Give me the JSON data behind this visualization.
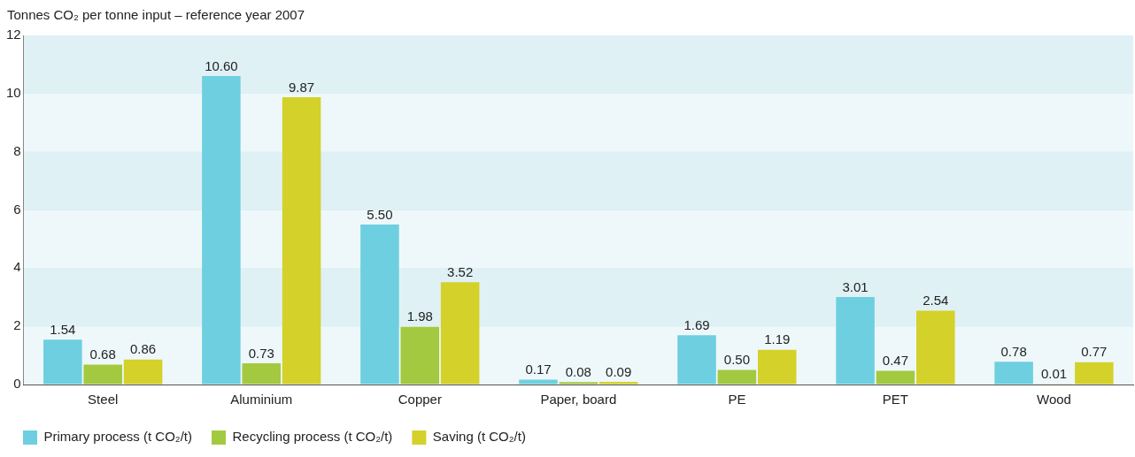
{
  "chart_data": {
    "type": "bar",
    "ylabel": "Tonnes CO₂ per tonne input – reference year 2007",
    "categories": [
      "Steel",
      "Aluminium",
      "Copper",
      "Paper, board",
      "PE",
      "PET",
      "Wood"
    ],
    "series": [
      {
        "name": "Primary process (t CO₂/t)",
        "color": "#6ecfe0",
        "values": [
          1.54,
          10.6,
          5.5,
          0.17,
          1.69,
          3.01,
          0.78
        ],
        "value_labels": [
          "1.54",
          "10.60",
          "5.50",
          "0.17",
          "1.69",
          "3.01",
          "0.78"
        ]
      },
      {
        "name": "Recycling process (t CO₂/t)",
        "color": "#a3c940",
        "values": [
          0.68,
          0.73,
          1.98,
          0.08,
          0.5,
          0.47,
          0.01
        ],
        "value_labels": [
          "0.68",
          "0.73",
          "1.98",
          "0.08",
          "0.50",
          "0.47",
          "0.01"
        ]
      },
      {
        "name": "Saving (t CO₂/t)",
        "color": "#d4d12a",
        "values": [
          0.86,
          9.87,
          3.52,
          0.09,
          1.19,
          2.54,
          0.77
        ],
        "value_labels": [
          "0.86",
          "9.87",
          "3.52",
          "0.09",
          "1.19",
          "2.54",
          "0.77"
        ]
      }
    ],
    "ylim": [
      0,
      12
    ],
    "yticks": [
      0,
      2,
      4,
      6,
      8,
      10,
      12
    ],
    "grid": "y",
    "legend": "bottom left"
  }
}
